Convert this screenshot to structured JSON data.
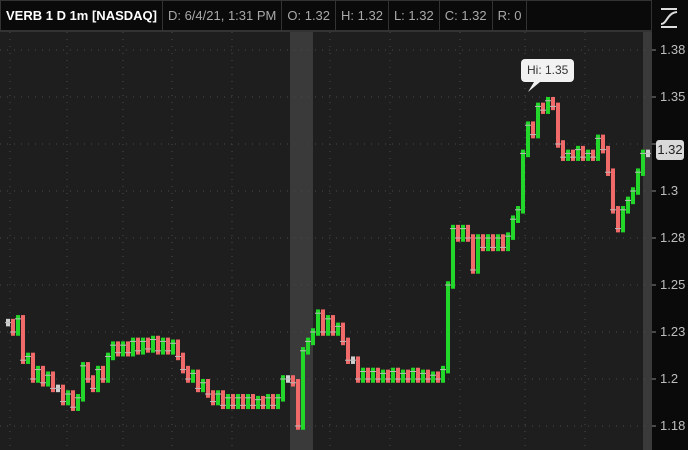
{
  "header": {
    "symbol": "VERB 1 D 1m [NASDAQ]",
    "date": "D: 6/4/21, 1:31 PM",
    "open": "O: 1.32",
    "high": "H: 1.32",
    "low": "L: 1.32",
    "close": "C: 1.32",
    "range": "R: 0"
  },
  "icons": {
    "style": "chart-style-icon"
  },
  "colors": {
    "up": "#22d62a",
    "down": "#f06a6a",
    "flat": "#cfcfcf",
    "background": "#1e1e1e",
    "highlight_band": "#3a3a3a"
  },
  "chart_data": {
    "type": "bar",
    "interval": "1m",
    "ylim": [
      1.17,
      1.385
    ],
    "y_ticks": [
      "1.38",
      "1.35",
      "1.32",
      "1.3",
      "1.28",
      "1.25",
      "1.23",
      "1.2",
      "1.18"
    ],
    "last_price_label": "1.32",
    "high_annotation": "Hi: 1.35",
    "grid": true,
    "closes": [
      1.23,
      1.225,
      1.232,
      1.21,
      1.212,
      1.2,
      1.205,
      1.198,
      1.202,
      1.195,
      1.195,
      1.188,
      1.192,
      1.185,
      1.19,
      1.207,
      1.2,
      1.195,
      1.205,
      1.2,
      1.212,
      1.218,
      1.214,
      1.218,
      1.214,
      1.22,
      1.215,
      1.22,
      1.216,
      1.221,
      1.215,
      1.22,
      1.215,
      1.219,
      1.212,
      1.205,
      1.2,
      1.203,
      1.195,
      1.198,
      1.192,
      1.188,
      1.192,
      1.186,
      1.19,
      1.186,
      1.19,
      1.186,
      1.19,
      1.186,
      1.189,
      1.186,
      1.19,
      1.186,
      1.19,
      1.2,
      1.2,
      1.198,
      1.175,
      1.215,
      1.22,
      1.225,
      1.235,
      1.225,
      1.232,
      1.225,
      1.228,
      1.22,
      1.21,
      1.21,
      1.2,
      1.204,
      1.2,
      1.204,
      1.2,
      1.203,
      1.2,
      1.204,
      1.2,
      1.203,
      1.2,
      1.204,
      1.2,
      1.203,
      1.2,
      1.202,
      1.2,
      1.205,
      1.25,
      1.28,
      1.275,
      1.28,
      1.275,
      1.258,
      1.275,
      1.27,
      1.275,
      1.27,
      1.275,
      1.27,
      1.276,
      1.285,
      1.29,
      1.32,
      1.335,
      1.33,
      1.345,
      1.343,
      1.348,
      1.345,
      1.325,
      1.318,
      1.32,
      1.318,
      1.322,
      1.318,
      1.32,
      1.318,
      1.328,
      1.322,
      1.31,
      1.29,
      1.28,
      1.29,
      1.295,
      1.3,
      1.31,
      1.32,
      1.32
    ]
  }
}
